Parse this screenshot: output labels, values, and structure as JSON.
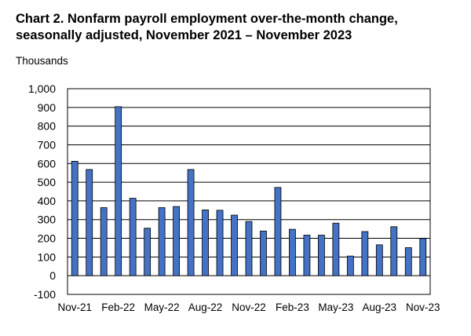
{
  "chart_data": {
    "type": "bar",
    "title_line1": "Chart 2. Nonfarm payroll employment over-the-month change,",
    "title_line2": "seasonally adjusted, November 2021 – November 2023",
    "units_label": "Thousands",
    "categories": [
      "Nov-21",
      "Dec-21",
      "Jan-22",
      "Feb-22",
      "Mar-22",
      "Apr-22",
      "May-22",
      "Jun-22",
      "Jul-22",
      "Aug-22",
      "Sep-22",
      "Oct-22",
      "Nov-22",
      "Dec-22",
      "Jan-23",
      "Feb-23",
      "Mar-23",
      "Apr-23",
      "May-23",
      "Jun-23",
      "Jul-23",
      "Aug-23",
      "Sep-23",
      "Oct-23",
      "Nov-23"
    ],
    "tick_labels": [
      "Nov-21",
      "Feb-22",
      "May-22",
      "Aug-22",
      "Nov-22",
      "Feb-23",
      "May-23",
      "Aug-23",
      "Nov-23"
    ],
    "values": [
      612,
      568,
      364,
      904,
      414,
      254,
      364,
      370,
      568,
      352,
      350,
      324,
      290,
      239,
      472,
      248,
      217,
      217,
      281,
      105,
      236,
      165,
      262,
      150,
      199
    ],
    "ylim": [
      -100,
      1000
    ],
    "yticks": [
      "-100",
      "0",
      "100",
      "200",
      "300",
      "400",
      "500",
      "600",
      "700",
      "800",
      "900",
      "1,000"
    ],
    "bar_color": "#4472C4",
    "grid": true
  }
}
